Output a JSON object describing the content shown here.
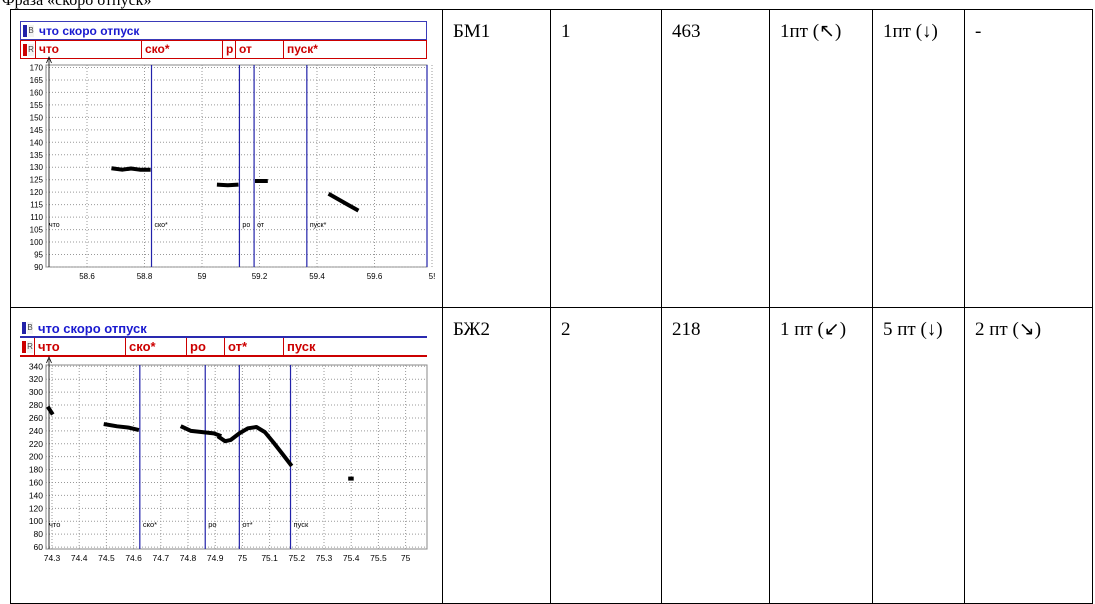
{
  "caption": "Фраза «скоро отпуск»",
  "rows": [
    {
      "speaker": "БМ1",
      "num": "1",
      "value": "463",
      "c4": "1пт (↖)",
      "c5": "1пт (↓)",
      "c6": "-",
      "figure": {
        "tier1_label": "что скоро отпуск",
        "tier1_letter": "B",
        "tier2_letter": "R",
        "segments": [
          "что",
          "ско*",
          "р",
          "от",
          "пуск*"
        ],
        "bottom_labels": [
          "что",
          "ско*",
          "ро",
          "от",
          "пуск*"
        ],
        "x_ticks": [
          "58.6",
          "58.8",
          "59",
          "59.2",
          "59.4",
          "59.6",
          "5!"
        ],
        "y_ticks": [
          "170",
          "165",
          "160",
          "155",
          "150",
          "145",
          "140",
          "135",
          "130",
          "125",
          "120",
          "115",
          "110",
          "105",
          "100",
          "95",
          "90"
        ]
      }
    },
    {
      "speaker": "БЖ2",
      "num": "2",
      "value": "218",
      "c4": "1 пт (↙)",
      "c5": "5 пт (↓)",
      "c6": "2 пт (↘)",
      "figure": {
        "tier1_label": "что скоро отпуск",
        "tier1_letter": "B",
        "tier2_letter": "R",
        "segments": [
          "что",
          "ско*",
          "ро",
          "от*",
          "пуск"
        ],
        "bottom_labels": [
          "что",
          "ско*",
          "ро",
          "от*",
          "пуск"
        ],
        "x_ticks": [
          "74.3",
          "74.4",
          "74.5",
          "74.6",
          "74.7",
          "74.8",
          "74.9",
          "75",
          "75.1",
          "75.2",
          "75.3",
          "75.4",
          "75.5",
          "75"
        ],
        "y_ticks": [
          "340",
          "320",
          "300",
          "280",
          "260",
          "240",
          "220",
          "200",
          "180",
          "160",
          "140",
          "120",
          "100",
          "80",
          "60"
        ]
      }
    }
  ],
  "chart_data": [
    {
      "type": "line",
      "title": "что скоро отпуск",
      "xlabel": "",
      "ylabel": "",
      "xlim": [
        58.44,
        59.74
      ],
      "ylim": [
        90,
        171
      ],
      "segment_boundaries": [
        58.8,
        59.1,
        59.15,
        59.33,
        59.74
      ],
      "series": [
        {
          "x": [
            58.67,
            58.7,
            58.73,
            58.76,
            58.79
          ],
          "y": [
            129.5,
            129,
            129.5,
            129,
            129
          ]
        },
        {
          "x": [
            59.03,
            59.06,
            59.09
          ],
          "y": [
            123,
            122.8,
            123
          ]
        },
        {
          "x": [
            59.16,
            59.19
          ],
          "y": [
            124.5,
            124.5
          ]
        },
        {
          "x": [
            59.41,
            59.44,
            59.47,
            59.5
          ],
          "y": [
            119,
            117,
            115,
            113
          ]
        }
      ],
      "grid": true
    },
    {
      "type": "line",
      "title": "что скоро отпуск",
      "xlabel": "",
      "ylabel": "",
      "xlim": [
        74.27,
        75.61
      ],
      "ylim": [
        57,
        342
      ],
      "segment_boundaries": [
        74.6,
        74.83,
        74.95,
        75.13
      ],
      "series": [
        {
          "x": [
            74.28,
            74.29
          ],
          "y": [
            275,
            268
          ]
        },
        {
          "x": [
            74.48,
            74.52,
            74.56,
            74.59
          ],
          "y": [
            250,
            247,
            245,
            242
          ]
        },
        {
          "x": [
            74.75,
            74.78,
            74.82,
            74.86,
            74.88
          ],
          "y": [
            246,
            240,
            238,
            236,
            233
          ]
        },
        {
          "x": [
            74.88,
            74.9,
            74.92,
            74.95,
            74.98,
            75.01,
            75.04,
            75.07,
            75.1,
            75.13
          ],
          "y": [
            230,
            224,
            226,
            236,
            244,
            246,
            238,
            222,
            205,
            188
          ]
        },
        {
          "x": [
            75.34,
            75.345
          ],
          "y": [
            166,
            166
          ]
        }
      ],
      "grid": true
    }
  ]
}
